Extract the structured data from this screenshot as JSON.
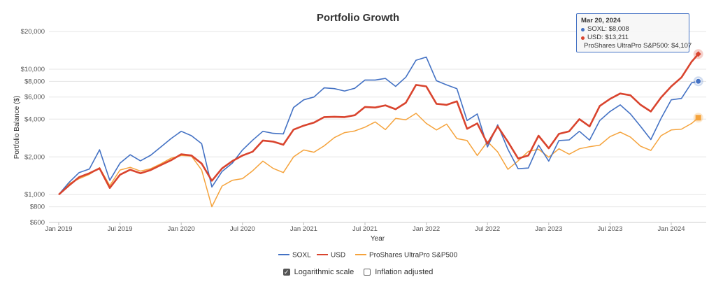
{
  "tooltip": {
    "date": "Mar 20, 2024",
    "rows": [
      {
        "label": "SOXL: $8,008",
        "color": "#4472c4"
      },
      {
        "label": "USD: $13,211",
        "color": "#d9442e"
      },
      {
        "label": "ProShares UltraPro S&P500: $4,107",
        "color": "#f5a33c"
      }
    ]
  },
  "controls": {
    "log_scale": {
      "label": "Logarithmic scale",
      "checked": true
    },
    "inflation": {
      "label": "Inflation adjusted",
      "checked": false
    }
  },
  "chart_data": {
    "type": "line",
    "title": "Portfolio Growth",
    "xlabel": "Year",
    "ylabel": "Portfolio Balance ($)",
    "y_scale": "log",
    "ylim": [
      600,
      20000
    ],
    "grid": true,
    "legend_position": "bottom",
    "y_ticks": [
      600,
      800,
      1000,
      2000,
      4000,
      6000,
      8000,
      10000,
      20000
    ],
    "y_tick_labels": [
      "$600",
      "$800",
      "$1,000",
      "$2,000",
      "$4,000",
      "$6,000",
      "$8,000",
      "$10,000",
      "$20,000"
    ],
    "x_ticks": [
      "Jan 2019",
      "Jul 2019",
      "Jan 2020",
      "Jul 2020",
      "Jan 2021",
      "Jul 2021",
      "Jan 2022",
      "Jul 2022",
      "Jan 2023",
      "Jul 2023",
      "Jan 2024"
    ],
    "x_start": "2019-01",
    "x_end": "2024-03",
    "highlight_date": "Mar 20, 2024",
    "series": [
      {
        "name": "SOXL",
        "color": "#4472c4",
        "marker": "circle",
        "values": [
          1000,
          1250,
          1500,
          1600,
          2280,
          1300,
          1780,
          2080,
          1860,
          2060,
          2400,
          2800,
          3200,
          2950,
          2550,
          1150,
          1530,
          1780,
          2270,
          2720,
          3200,
          3080,
          3050,
          4950,
          5700,
          6000,
          7100,
          7000,
          6700,
          7050,
          8200,
          8200,
          8450,
          7300,
          8650,
          11800,
          12500,
          8100,
          7500,
          7000,
          3900,
          4400,
          2400,
          3600,
          2300,
          1610,
          1630,
          2480,
          1850,
          2700,
          2730,
          3200,
          2720,
          3900,
          4600,
          5200,
          4400,
          3500,
          2750,
          4050,
          5700,
          5850,
          7800,
          8008
        ]
      },
      {
        "name": "USD",
        "color": "#d9442e",
        "marker": "diamond",
        "values": [
          1000,
          1180,
          1380,
          1480,
          1620,
          1130,
          1440,
          1580,
          1480,
          1570,
          1720,
          1880,
          2100,
          2050,
          1770,
          1290,
          1620,
          1850,
          2050,
          2200,
          2700,
          2650,
          2500,
          3300,
          3550,
          3750,
          4150,
          4180,
          4150,
          4300,
          5000,
          4950,
          5150,
          4800,
          5400,
          7500,
          7300,
          5300,
          5200,
          5550,
          3350,
          3700,
          2550,
          3500,
          2640,
          1940,
          2050,
          2950,
          2340,
          3050,
          3200,
          4000,
          3500,
          5100,
          5800,
          6400,
          6200,
          5200,
          4600,
          5950,
          7300,
          8600,
          11500,
          13211
        ]
      },
      {
        "name": "ProShares UltraPro S&P500",
        "color": "#f5a33c",
        "marker": "square",
        "values": [
          1000,
          1220,
          1340,
          1450,
          1640,
          1180,
          1570,
          1650,
          1540,
          1610,
          1760,
          1950,
          2050,
          2030,
          1570,
          800,
          1170,
          1300,
          1340,
          1550,
          1850,
          1620,
          1500,
          2000,
          2270,
          2180,
          2450,
          2850,
          3120,
          3220,
          3450,
          3800,
          3300,
          4050,
          3950,
          4450,
          3700,
          3280,
          3650,
          2800,
          2700,
          2050,
          2650,
          2190,
          1590,
          1860,
          2210,
          2300,
          1990,
          2320,
          2100,
          2320,
          2410,
          2480,
          2900,
          3150,
          2880,
          2430,
          2250,
          2950,
          3280,
          3330,
          3700,
          4107
        ]
      }
    ]
  }
}
